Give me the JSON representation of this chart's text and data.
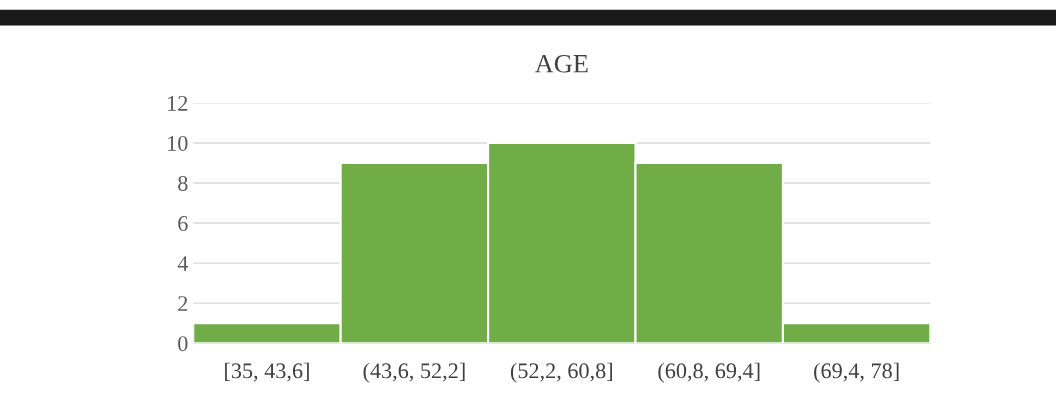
{
  "chart_data": {
    "type": "bar",
    "title": "AGE",
    "categories": [
      "[35, 43,6]",
      "(43,6, 52,2]",
      "(52,2, 60,8]",
      "(60,8, 69,4]",
      "(69,4, 78]"
    ],
    "values": [
      1,
      9,
      10,
      9,
      1
    ],
    "color": "#70ad47",
    "ylim": [
      0,
      12
    ],
    "yticks": [
      0,
      2,
      4,
      6,
      8,
      10,
      12
    ],
    "grid": "y",
    "legend": false
  }
}
